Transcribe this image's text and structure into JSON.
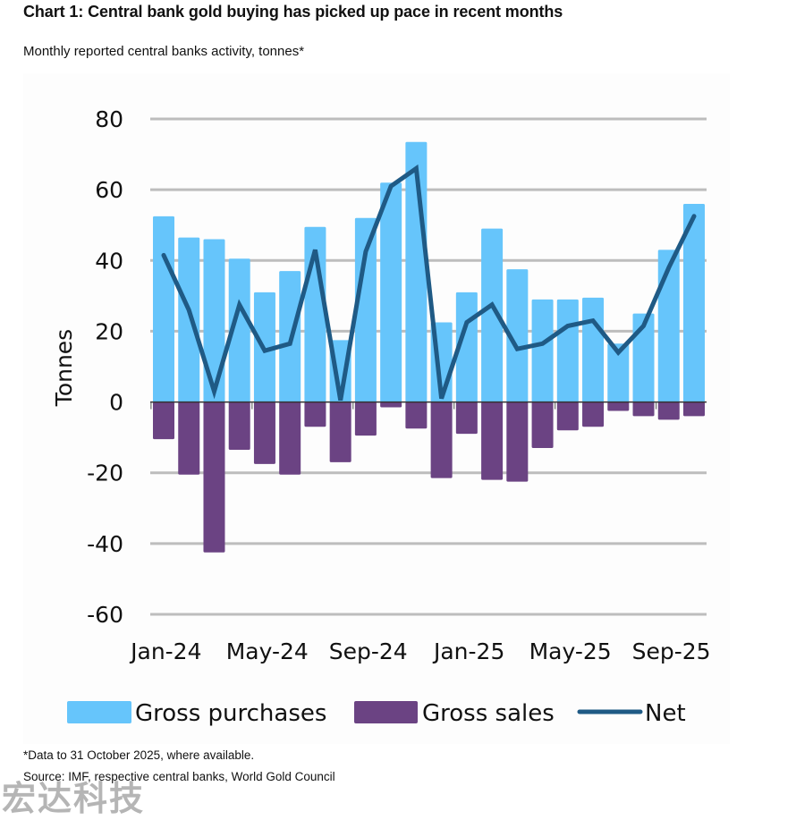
{
  "header": {
    "title": "Chart 1: Central bank gold buying has picked up pace in recent months",
    "subtitle": "Monthly reported central banks activity, tonnes*"
  },
  "footer": {
    "note": "*Data to 31 October 2025, where available.",
    "source": "Source: IMF, respective central banks, World Gold Council",
    "watermark": "宏达科技"
  },
  "colors": {
    "purchases": "#66c5fb",
    "sales": "#6b4383",
    "net": "#1f5a85",
    "grid": "#bdbdbd"
  },
  "chart_data": {
    "type": "bar",
    "title": "Chart 1: Central bank gold buying has picked up pace in recent months",
    "subtitle": "Monthly reported central banks activity, tonnes*",
    "xlabel": "",
    "ylabel": "Tonnes",
    "ylim": [
      -60,
      80
    ],
    "yticks": [
      80,
      60,
      40,
      20,
      0,
      -20,
      -40,
      -60
    ],
    "grid": true,
    "legend_position": "bottom",
    "categories": [
      "Jan-24",
      "Feb-24",
      "Mar-24",
      "Apr-24",
      "May-24",
      "Jun-24",
      "Jul-24",
      "Aug-24",
      "Sep-24",
      "Oct-24",
      "Nov-24",
      "Dec-24",
      "Jan-25",
      "Feb-25",
      "Mar-25",
      "Apr-25",
      "May-25",
      "Jun-25",
      "Jul-25",
      "Aug-25",
      "Sep-25",
      "Oct-25"
    ],
    "xtick_labels": [
      "Jan-24",
      "May-24",
      "Sep-24",
      "Jan-25",
      "May-25",
      "Sep-25"
    ],
    "series": [
      {
        "name": "Gross purchases",
        "kind": "bar",
        "values": [
          52.5,
          46.5,
          46,
          40.5,
          31,
          37,
          49.5,
          17.5,
          52,
          62,
          73.5,
          22.5,
          31,
          49,
          37.5,
          29,
          29,
          29.5,
          16.5,
          25,
          43,
          56
        ]
      },
      {
        "name": "Gross sales",
        "kind": "bar",
        "values": [
          -10.5,
          -20.5,
          -42.5,
          -13.5,
          -17.5,
          -20.5,
          -7,
          -17,
          -9.5,
          -1.5,
          -7.5,
          -21.5,
          -9,
          -22,
          -22.5,
          -13,
          -8,
          -7,
          -2.5,
          -4,
          -5,
          -4
        ]
      },
      {
        "name": "Net",
        "kind": "line",
        "values": [
          41.5,
          26,
          3,
          27.5,
          14.5,
          16.5,
          43,
          0.5,
          42.5,
          61,
          66,
          1,
          22.5,
          27.5,
          15,
          16.5,
          21.5,
          23,
          14,
          21.5,
          38,
          52.5
        ]
      }
    ]
  }
}
